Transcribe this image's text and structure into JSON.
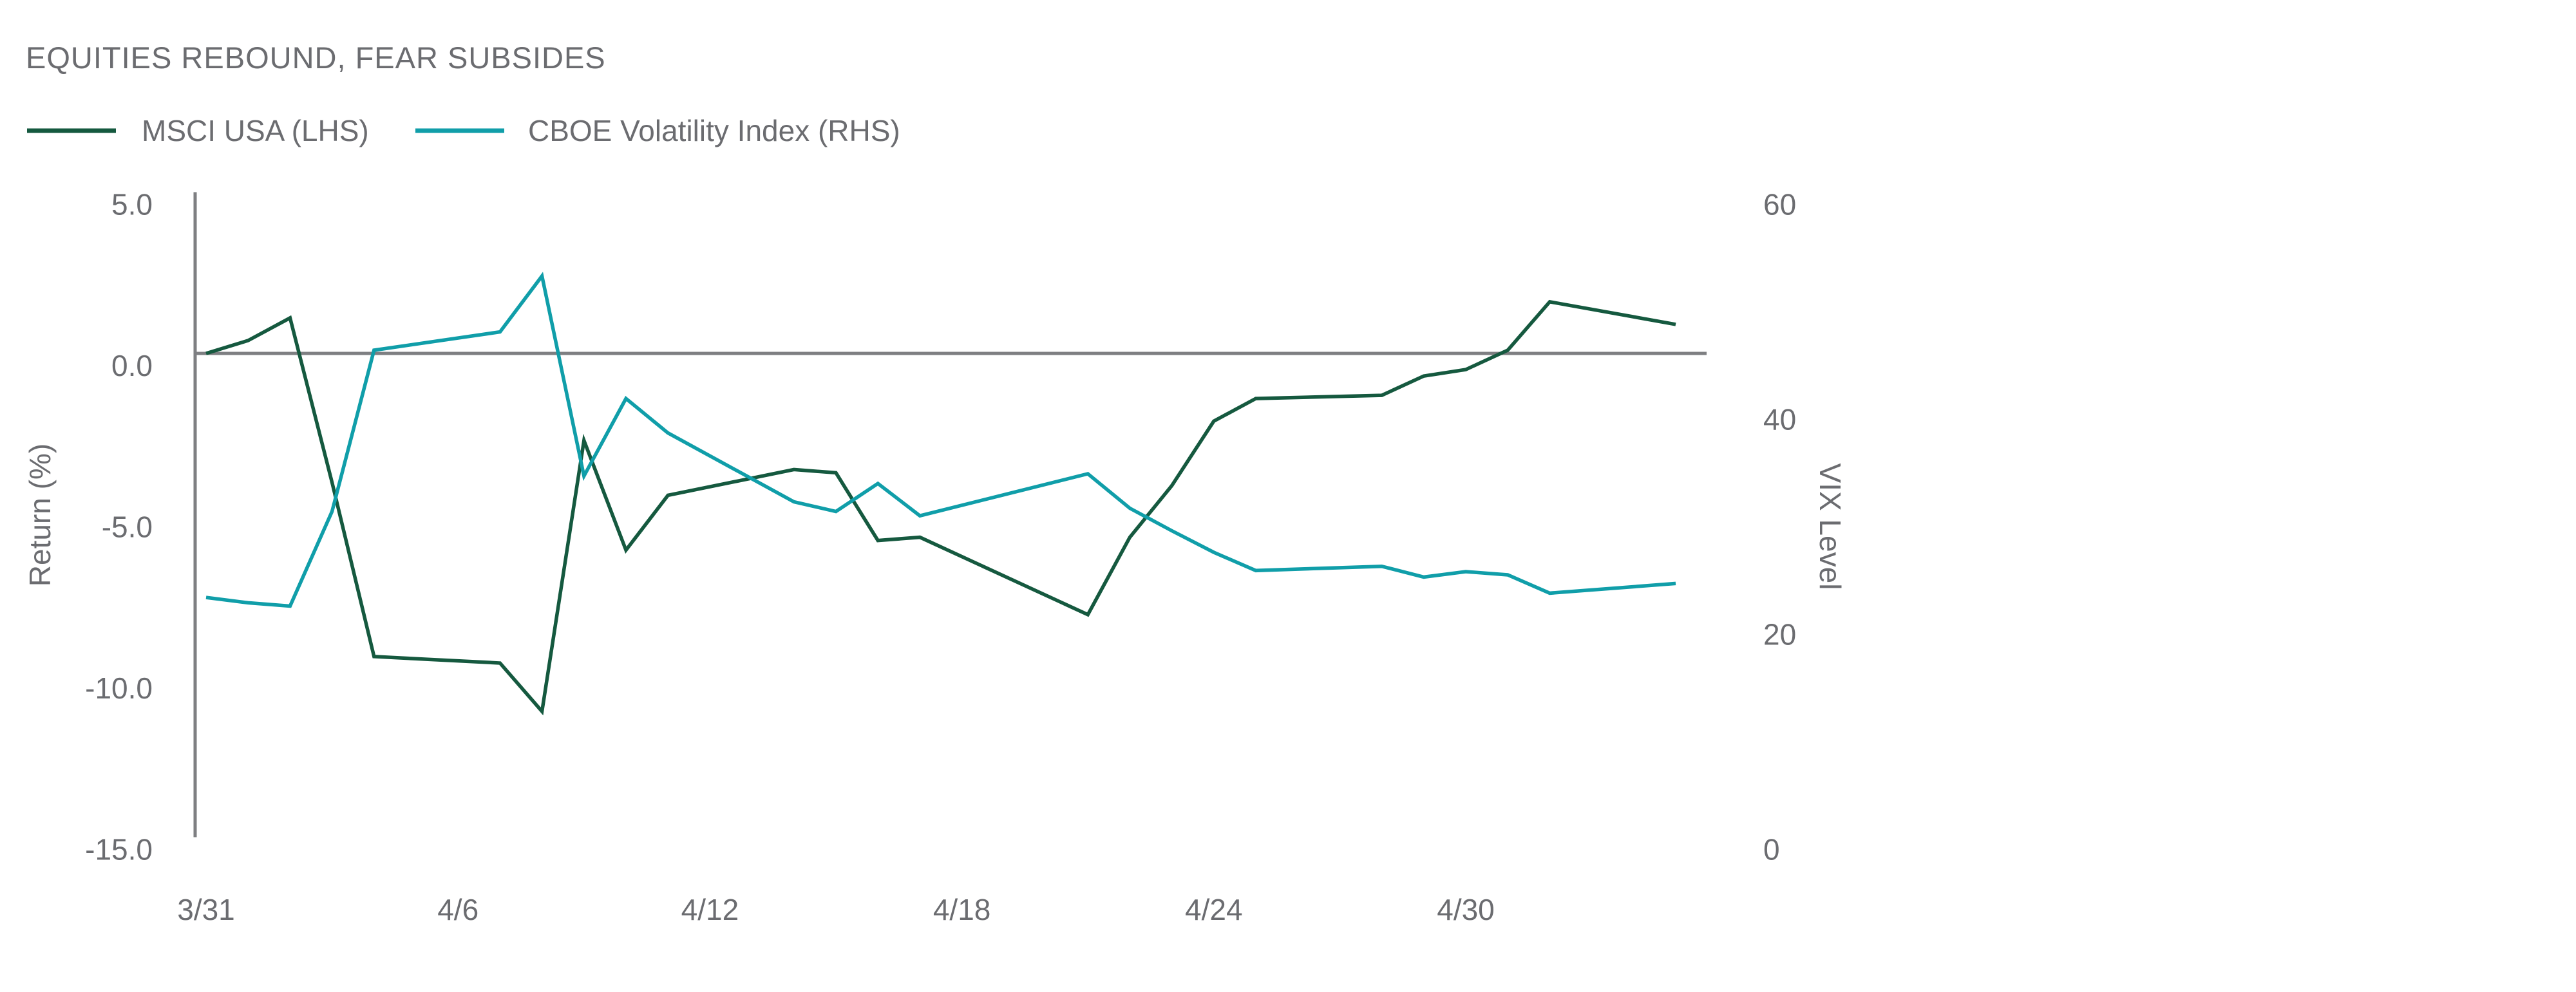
{
  "title": "EQUITIES REBOUND, FEAR SUBSIDES",
  "legend": {
    "items": [
      {
        "label": "MSCI USA (LHS)",
        "color": "#15593F"
      },
      {
        "label": "CBOE Volatility Index (RHS)",
        "color": "#109EA9"
      }
    ]
  },
  "colors": {
    "background": "#FFFFFF",
    "text_gray": "#6B6C70",
    "axis_gray": "#7E7F82",
    "msci_green": "#15593F",
    "vix_teal": "#109EA9"
  },
  "chart_data": {
    "type": "line",
    "title": "EQUITIES REBOUND, FEAR SUBSIDES",
    "x": [
      "3/31",
      "4/1",
      "4/2",
      "4/3",
      "4/4",
      "4/7",
      "4/8",
      "4/9",
      "4/10",
      "4/11",
      "4/14",
      "4/15",
      "4/16",
      "4/17",
      "4/21",
      "4/22",
      "4/23",
      "4/24",
      "4/25",
      "4/28",
      "4/29",
      "4/30",
      "5/1",
      "5/2",
      "5/5"
    ],
    "x_day_offsets": [
      0,
      1,
      2,
      3,
      4,
      7,
      8,
      9,
      10,
      11,
      14,
      15,
      16,
      17,
      21,
      22,
      23,
      24,
      25,
      28,
      29,
      30,
      31,
      32,
      35
    ],
    "series": [
      {
        "name": "MSCI USA (LHS)",
        "axis": "left",
        "color": "#15593F",
        "values": [
          0.0,
          0.4,
          1.1,
          -4.0,
          -9.4,
          -9.6,
          -11.1,
          -2.7,
          -6.1,
          -4.4,
          -3.6,
          -3.7,
          -5.8,
          -5.7,
          -8.1,
          -5.7,
          -4.1,
          -2.1,
          -1.4,
          -1.3,
          -0.7,
          -0.5,
          0.1,
          1.6,
          0.9
        ]
      },
      {
        "name": "CBOE Volatility Index (RHS)",
        "axis": "right",
        "color": "#109EA9",
        "values": [
          22.3,
          21.8,
          21.5,
          30.3,
          45.3,
          47.0,
          52.2,
          33.6,
          40.8,
          37.6,
          31.2,
          30.3,
          32.9,
          29.9,
          33.8,
          30.6,
          28.5,
          26.5,
          24.8,
          25.2,
          24.2,
          24.7,
          24.4,
          22.7,
          23.6
        ]
      }
    ],
    "left_axis": {
      "label": "Return (%)",
      "range": [
        -15,
        5
      ],
      "ticks": [
        5,
        0,
        -5,
        -10,
        -15
      ],
      "tick_labels": [
        "5.0",
        "0.0",
        "-5.0",
        "-10.0",
        "-15.0"
      ]
    },
    "right_axis": {
      "label": "VIX Level",
      "range": [
        0,
        60
      ],
      "ticks": [
        60,
        40,
        20,
        0
      ],
      "tick_labels": [
        "60",
        "40",
        "20",
        "0"
      ]
    },
    "x_ticks": {
      "labels": [
        "3/31",
        "4/6",
        "4/12",
        "4/18",
        "4/24",
        "4/30"
      ],
      "day_offsets": [
        0,
        6,
        12,
        18,
        24,
        30
      ]
    },
    "zero_line": true,
    "grid": false,
    "legend_position": "top-left"
  }
}
